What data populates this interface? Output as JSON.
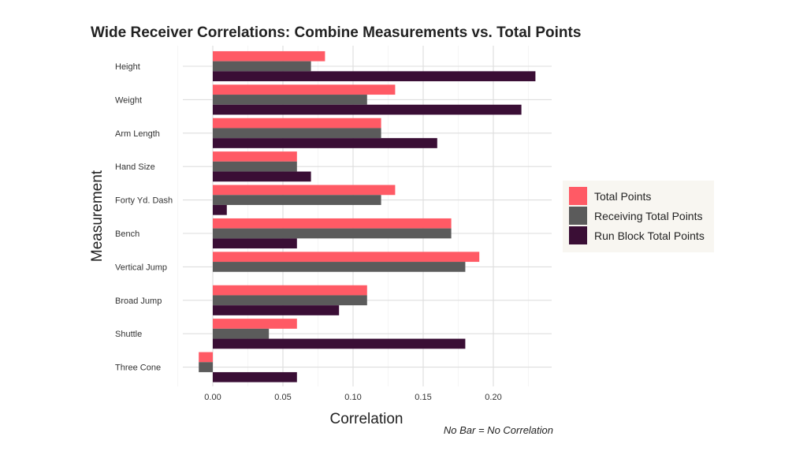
{
  "chart_data": {
    "type": "bar",
    "orientation": "horizontal",
    "title": "Wide Receiver Correlations: Combine Measurements vs. Total Points",
    "xlabel": "Correlation",
    "ylabel": "Measurement",
    "caption": "No Bar = No Correlation",
    "xlim": [
      -0.02,
      0.24
    ],
    "xticks": [
      "0.00",
      "0.05",
      "0.10",
      "0.15",
      "0.20"
    ],
    "grid": true,
    "legend": "right",
    "categories": [
      "Height",
      "Weight",
      "Arm Length",
      "Hand Size",
      "Forty Yd. Dash",
      "Bench",
      "Vertical Jump",
      "Broad Jump",
      "Shuttle",
      "Three Cone"
    ],
    "series": [
      {
        "name": "Total Points",
        "color": "#FF5A65",
        "values": [
          0.08,
          0.13,
          0.12,
          0.06,
          0.13,
          0.17,
          0.19,
          0.11,
          0.06,
          -0.01
        ]
      },
      {
        "name": "Receiving Total Points",
        "color": "#5B5B5B",
        "values": [
          0.07,
          0.11,
          0.12,
          0.06,
          0.12,
          0.17,
          0.18,
          0.11,
          0.04,
          -0.01
        ]
      },
      {
        "name": "Run Block Total Points",
        "color": "#3A0E35",
        "values": [
          0.23,
          0.22,
          0.16,
          0.07,
          0.01,
          0.06,
          0,
          0.09,
          0.18,
          0.06
        ]
      }
    ]
  }
}
